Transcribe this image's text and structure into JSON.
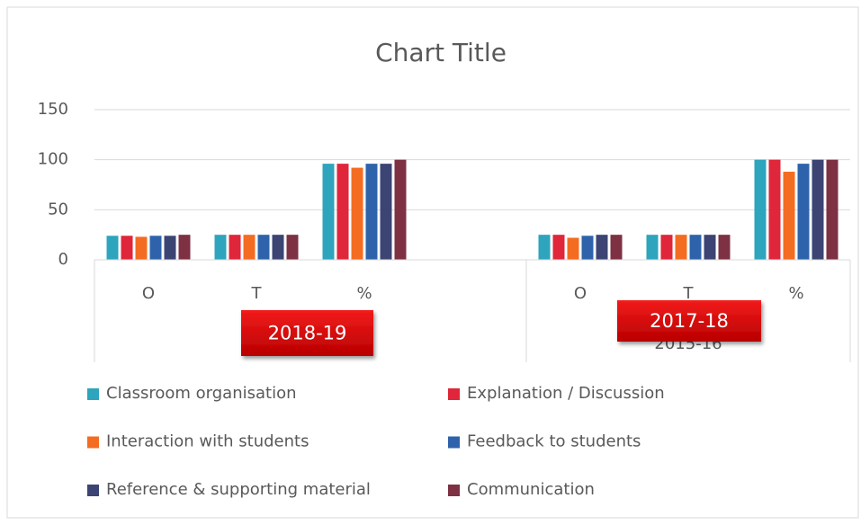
{
  "chart_data": {
    "type": "bar",
    "title": "Chart Title",
    "categories": [
      "O",
      "T",
      "%",
      null,
      "O",
      "T",
      "%"
    ],
    "group_labels": [
      null,
      "2015-16"
    ],
    "series": [
      {
        "name": "Classroom organisation",
        "color": "#2ea4bd",
        "values": [
          24,
          25,
          96,
          null,
          25,
          25,
          100
        ]
      },
      {
        "name": "Explanation / Discussion",
        "color": "#e0263a",
        "values": [
          24,
          25,
          96,
          null,
          25,
          25,
          100
        ]
      },
      {
        "name": "Interaction with students",
        "color": "#f36c21",
        "values": [
          23,
          25,
          92,
          null,
          22,
          25,
          88
        ]
      },
      {
        "name": "Feedback to students",
        "color": "#2e63ab",
        "values": [
          24,
          25,
          96,
          null,
          24,
          25,
          96
        ]
      },
      {
        "name": "Reference & supporting material",
        "color": "#3c4473",
        "values": [
          24,
          25,
          96,
          null,
          25,
          25,
          100
        ]
      },
      {
        "name": "Communication",
        "color": "#7d3143",
        "values": [
          25,
          25,
          100,
          null,
          25,
          25,
          100
        ]
      }
    ],
    "ylim": [
      0,
      150
    ],
    "yticks": [
      0,
      50,
      100,
      150
    ],
    "grid": true,
    "annotations": [
      "2018-19",
      "2017-18"
    ]
  }
}
